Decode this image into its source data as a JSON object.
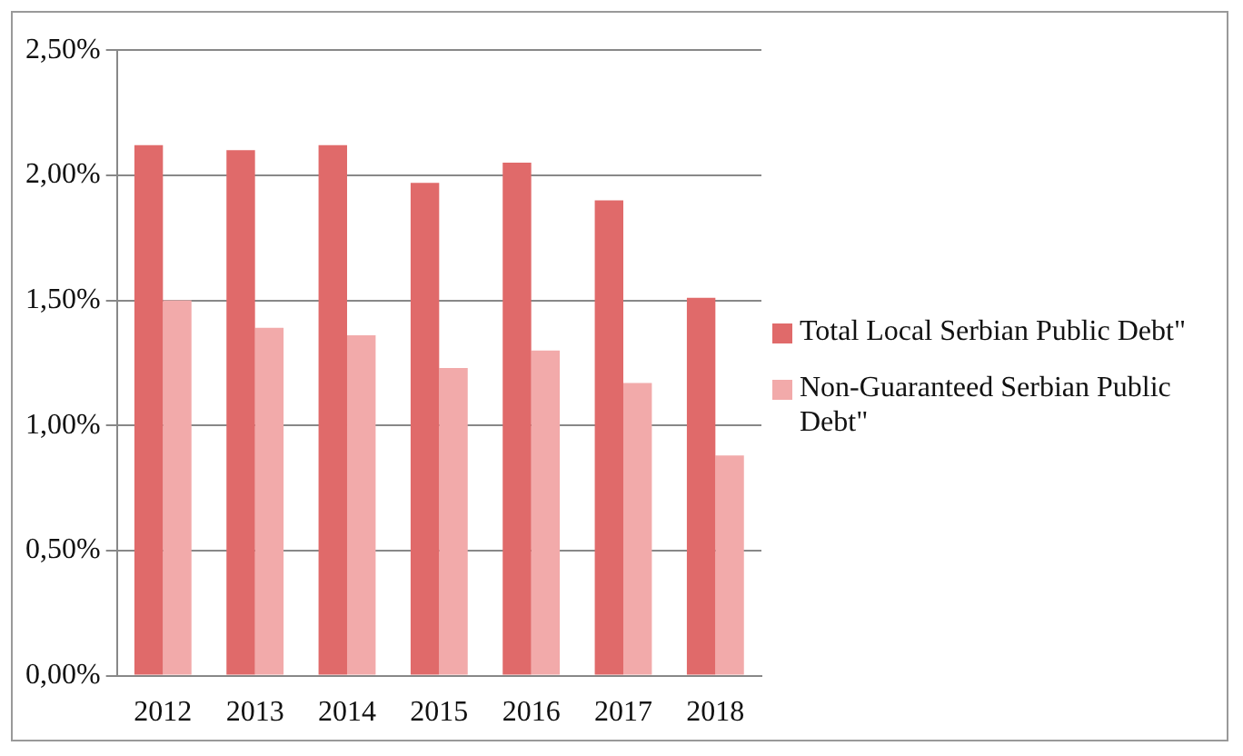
{
  "chart_data": {
    "type": "bar",
    "categories": [
      "2012",
      "2013",
      "2014",
      "2015",
      "2016",
      "2017",
      "2018"
    ],
    "series": [
      {
        "name": "Total Local Serbian Public Debt\"",
        "color": "#e06a6a",
        "values": [
          2.12,
          2.1,
          2.12,
          1.97,
          2.05,
          1.9,
          1.51
        ]
      },
      {
        "name": "Non-Guaranteed Serbian Public Debt\"",
        "color": "#f2aaaa",
        "values": [
          1.5,
          1.39,
          1.36,
          1.23,
          1.3,
          1.17,
          0.88
        ]
      }
    ],
    "ylim": [
      0,
      2.5
    ],
    "yticks": [
      {
        "value": 0,
        "label": "0,00%"
      },
      {
        "value": 0.5,
        "label": "0,50%"
      },
      {
        "value": 1,
        "label": "1,00%"
      },
      {
        "value": 1.5,
        "label": "1,50%"
      },
      {
        "value": 2,
        "label": "2,00%"
      },
      {
        "value": 2.5,
        "label": "2,50%"
      }
    ],
    "grid": "y",
    "legend": "right"
  }
}
